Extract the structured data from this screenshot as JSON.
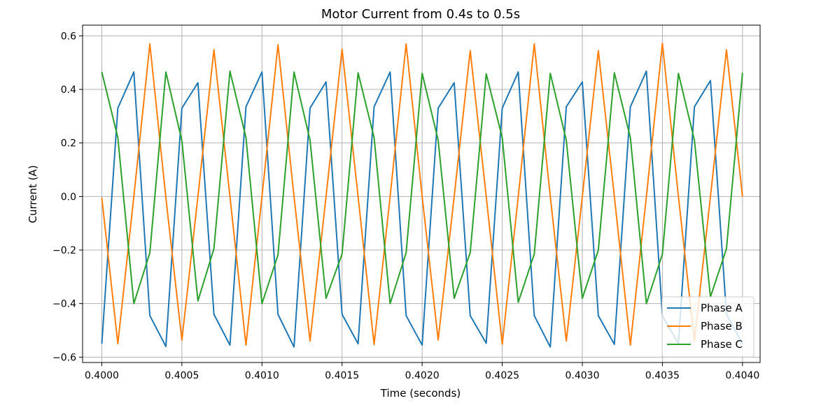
{
  "chart_data": {
    "type": "line",
    "title": "Motor Current from 0.4s to 0.5s",
    "xlabel": "Time (seconds)",
    "ylabel": "Current (A)",
    "xlim": [
      0.39988,
      0.40411
    ],
    "ylim": [
      -0.62,
      0.64
    ],
    "grid": true,
    "legend_position": "lower-right",
    "x_ticks": [
      0.4,
      0.4005,
      0.401,
      0.4015,
      0.402,
      0.4025,
      0.403,
      0.4035,
      0.404
    ],
    "x_tick_labels": [
      "0.4000",
      "0.4005",
      "0.4010",
      "0.4015",
      "0.4020",
      "0.4025",
      "0.4030",
      "0.4035",
      "0.4040"
    ],
    "y_ticks": [
      -0.6,
      -0.4,
      -0.2,
      0.0,
      0.2,
      0.4,
      0.6
    ],
    "y_tick_labels": [
      "−0.6",
      "−0.4",
      "−0.2",
      "0.0",
      "0.2",
      "0.4",
      "0.6"
    ],
    "x": [
      0.4,
      0.4001,
      0.4002,
      0.4003,
      0.4004,
      0.4005,
      0.4006,
      0.4007,
      0.4008,
      0.4009,
      0.401,
      0.4011,
      0.4012,
      0.4013,
      0.4014,
      0.4015,
      0.4016,
      0.4017,
      0.4018,
      0.4019,
      0.402,
      0.4021,
      0.4022,
      0.4023,
      0.4024,
      0.4025,
      0.4026,
      0.4027,
      0.4028,
      0.4029,
      0.403,
      0.4031,
      0.4032,
      0.4033,
      0.4034,
      0.4035,
      0.4036,
      0.4037,
      0.4038,
      0.4039,
      0.404
    ],
    "series": [
      {
        "name": "Phase A",
        "color": "#1f77b4",
        "values": [
          -0.55,
          0.33,
          0.465,
          -0.445,
          -0.56,
          0.33,
          0.425,
          -0.44,
          -0.555,
          0.335,
          0.465,
          -0.44,
          -0.562,
          0.33,
          0.428,
          -0.44,
          -0.55,
          0.335,
          0.465,
          -0.445,
          -0.555,
          0.33,
          0.425,
          -0.445,
          -0.548,
          0.33,
          0.465,
          -0.445,
          -0.562,
          0.335,
          0.428,
          -0.445,
          -0.552,
          0.335,
          0.468,
          -0.445,
          -0.55,
          0.335,
          0.433,
          -0.44,
          -0.55
        ]
      },
      {
        "name": "Phase B",
        "color": "#ff7f0e",
        "values": [
          -0.005,
          -0.55,
          0.0,
          0.57,
          -0.005,
          -0.537,
          0.0,
          0.548,
          0.0,
          -0.555,
          0.0,
          0.567,
          0.0,
          -0.54,
          0.0,
          0.55,
          0.0,
          -0.553,
          0.0,
          0.57,
          0.0,
          -0.536,
          0.0,
          0.545,
          0.0,
          -0.552,
          0.0,
          0.57,
          0.0,
          -0.54,
          0.0,
          0.545,
          0.0,
          -0.555,
          0.0,
          0.572,
          0.0,
          -0.54,
          0.0,
          0.548,
          0.0
        ]
      },
      {
        "name": "Phase C",
        "color": "#2ca02c",
        "values": [
          0.465,
          0.22,
          -0.4,
          -0.21,
          0.465,
          0.208,
          -0.39,
          -0.195,
          0.468,
          0.22,
          -0.4,
          -0.218,
          0.465,
          0.21,
          -0.38,
          -0.215,
          0.462,
          0.22,
          -0.4,
          -0.21,
          0.46,
          0.21,
          -0.38,
          -0.21,
          0.458,
          0.22,
          -0.395,
          -0.215,
          0.46,
          0.21,
          -0.38,
          -0.2,
          0.462,
          0.22,
          -0.4,
          -0.215,
          0.46,
          0.21,
          -0.375,
          -0.195,
          0.462
        ]
      }
    ]
  }
}
